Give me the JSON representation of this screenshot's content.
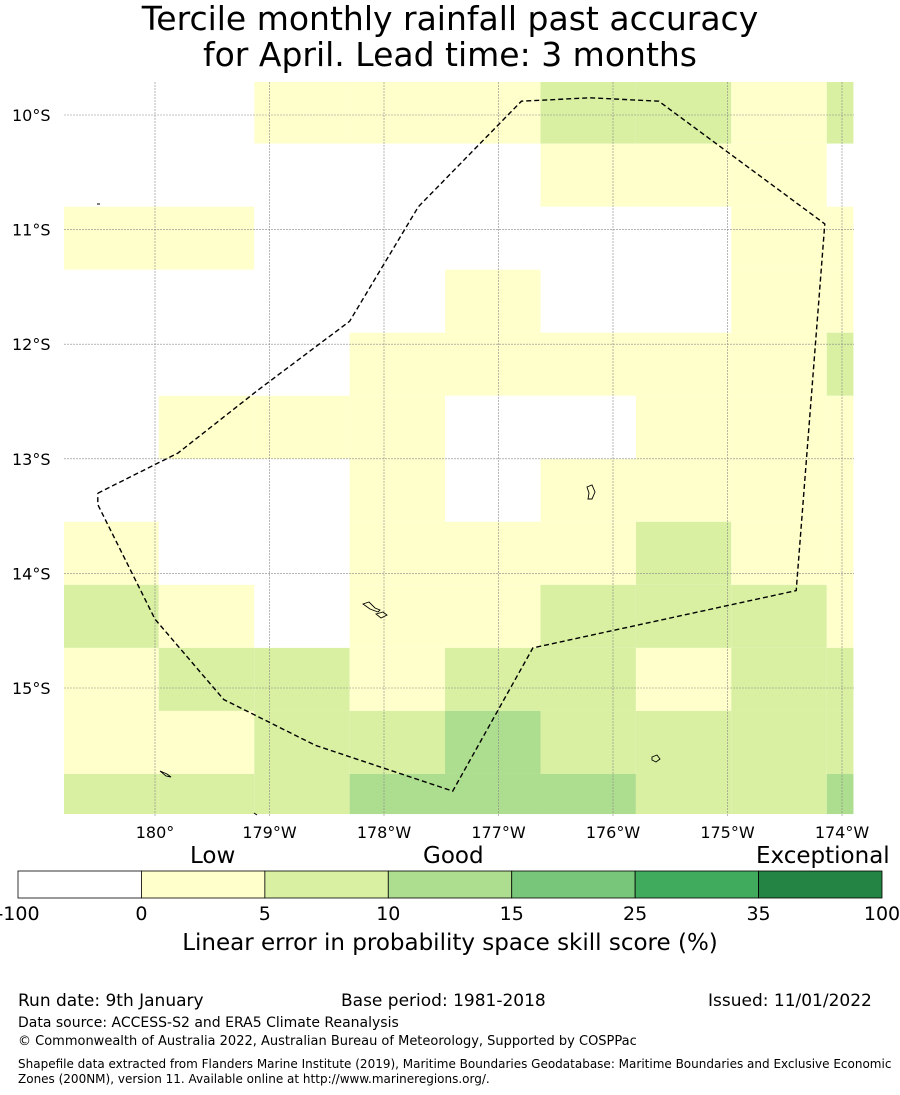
{
  "title": {
    "line1": "Tercile monthly rainfall past accuracy",
    "line2": "for April. Lead time: 3 months"
  },
  "map": {
    "lon_range": [
      -180.8,
      -173.9
    ],
    "lat_range": [
      -16.1,
      -9.7
    ],
    "lat_ticks": [
      {
        "value": -10,
        "label": "10°S"
      },
      {
        "value": -11,
        "label": "11°S"
      },
      {
        "value": -12,
        "label": "12°S"
      },
      {
        "value": -13,
        "label": "13°S"
      },
      {
        "value": -14,
        "label": "14°S"
      },
      {
        "value": -15,
        "label": "15°S"
      }
    ],
    "lon_ticks": [
      {
        "value": -180,
        "label": "180°"
      },
      {
        "value": -179,
        "label": "179°W"
      },
      {
        "value": -178,
        "label": "178°W"
      },
      {
        "value": -177,
        "label": "177°W"
      },
      {
        "value": -176,
        "label": "176°W"
      },
      {
        "value": -175,
        "label": "175°W"
      },
      {
        "value": -174,
        "label": "174°W"
      }
    ],
    "grid_lon_edges": [
      -180.8,
      -179.967,
      -179.133,
      -178.3,
      -177.467,
      -176.633,
      -175.8,
      -174.967,
      -174.133,
      -173.9
    ],
    "grid_lat_edges": [
      -9.7,
      -10.25,
      -10.8,
      -11.35,
      -11.9,
      -12.45,
      -13.0,
      -13.55,
      -14.1,
      -14.65,
      -15.2,
      -15.75,
      -16.1
    ],
    "cell_classes": [
      [
        0,
        0,
        1,
        1,
        1,
        2,
        2,
        1,
        2
      ],
      [
        0,
        0,
        0,
        0,
        0,
        1,
        1,
        1,
        0
      ],
      [
        1,
        1,
        0,
        0,
        0,
        0,
        0,
        1,
        1
      ],
      [
        0,
        0,
        0,
        0,
        1,
        0,
        0,
        1,
        1
      ],
      [
        0,
        0,
        0,
        1,
        1,
        1,
        1,
        1,
        2
      ],
      [
        0,
        1,
        1,
        1,
        0,
        0,
        1,
        1,
        1
      ],
      [
        0,
        0,
        0,
        1,
        0,
        1,
        1,
        1,
        1
      ],
      [
        1,
        0,
        0,
        1,
        1,
        1,
        2,
        1,
        1
      ],
      [
        2,
        1,
        0,
        1,
        1,
        2,
        2,
        2,
        1
      ],
      [
        1,
        2,
        2,
        1,
        2,
        2,
        1,
        2,
        2
      ],
      [
        1,
        1,
        2,
        2,
        3,
        2,
        2,
        2,
        2
      ],
      [
        2,
        2,
        2,
        3,
        3,
        3,
        2,
        2,
        3
      ]
    ],
    "colors": [
      "#ffffff",
      "#ffffcc",
      "#d9f0a3",
      "#addd8e",
      "#78c679",
      "#41ab5d",
      "#238443"
    ],
    "boundary": [
      [
        -180.5,
        -13.3
      ],
      [
        -179.8,
        -12.95
      ],
      [
        -179.1,
        -12.4
      ],
      [
        -178.3,
        -11.8
      ],
      [
        -177.7,
        -10.8
      ],
      [
        -176.8,
        -9.88
      ],
      [
        -176.2,
        -9.85
      ],
      [
        -175.6,
        -9.88
      ],
      [
        -174.15,
        -10.95
      ],
      [
        -174.4,
        -14.15
      ],
      [
        -176.7,
        -14.65
      ],
      [
        -177.4,
        -15.9
      ],
      [
        -178.6,
        -15.5
      ],
      [
        -179.4,
        -15.1
      ],
      [
        -180.0,
        -14.4
      ],
      [
        -180.5,
        -13.4
      ],
      [
        -180.5,
        -13.3
      ]
    ]
  },
  "legend": {
    "categories": [
      "Low",
      "Good",
      "Exceptional"
    ],
    "bins": [
      "-100",
      "0",
      "5",
      "10",
      "15",
      "25",
      "35",
      "100"
    ],
    "title": "Linear error in probability space skill score (%)"
  },
  "footer": {
    "run_date": "Run date: 9th January",
    "base_period": "Base period: 1981-2018",
    "issued": "Issued: 11/01/2022",
    "data_source": "Data source: ACCESS-S2 and ERA5 Climate Reanalysis",
    "copyright": "© Commonwealth of Australia 2022, Australian Bureau of Meteorology, Supported by COSPPac",
    "shapefile": "Shapefile data extracted from Flanders Marine Institute (2019), Maritime Boundaries Geodatabase: Maritime Boundaries and Exclusive Economic Zones (200NM), version 11. Available online at http://www.marineregions.org/."
  }
}
